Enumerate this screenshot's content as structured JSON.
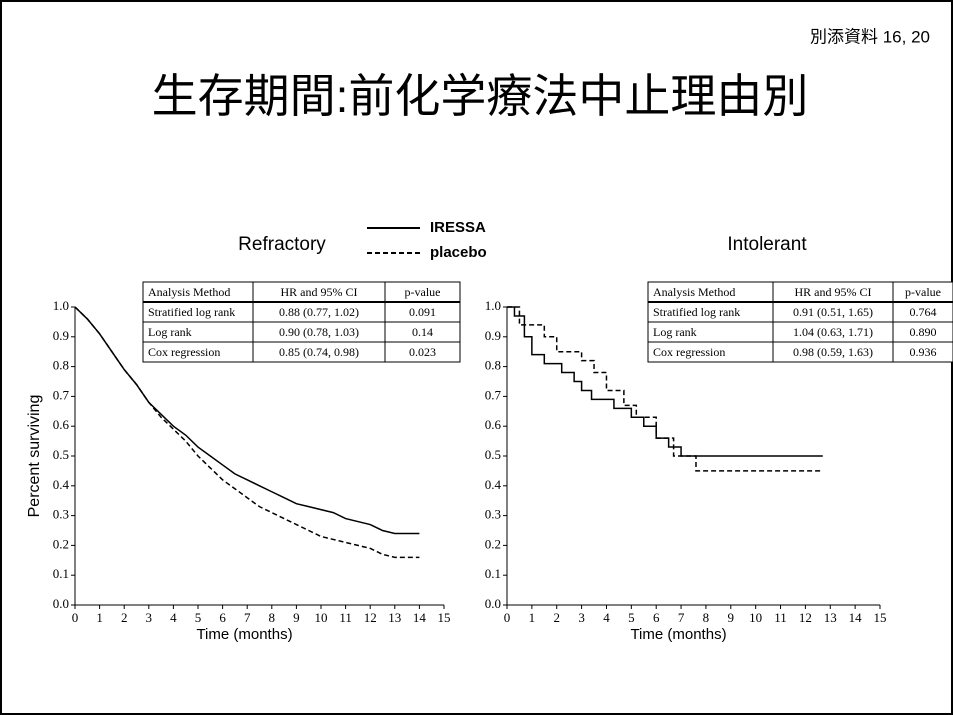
{
  "header": {
    "reference": "別添資料 16, 20",
    "title": "生存期間:前化学療法中止理由別"
  },
  "chart_data": [
    {
      "type": "line",
      "title": "Refractory",
      "x_label": "Time (months)",
      "y_label": "Percent surviving",
      "steps": false,
      "xlim": [
        0,
        15
      ],
      "ylim": [
        0,
        1
      ],
      "xticks": [
        0,
        1,
        2,
        3,
        4,
        5,
        6,
        7,
        8,
        9,
        10,
        11,
        12,
        13,
        14,
        15
      ],
      "yticks": [
        {
          "value": 0,
          "label": "0.0"
        },
        {
          "value": 0.1,
          "label": "0.1"
        },
        {
          "value": 0.2,
          "label": "0.2"
        },
        {
          "value": 0.3,
          "label": "0.3"
        },
        {
          "value": 0.4,
          "label": "0.4"
        },
        {
          "value": 0.5,
          "label": "0.5"
        },
        {
          "value": 0.6,
          "label": "0.6"
        },
        {
          "value": 0.7,
          "label": "0.7"
        },
        {
          "value": 0.8,
          "label": "0.8"
        },
        {
          "value": 0.9,
          "label": "0.9"
        },
        {
          "value": 1,
          "label": "1.0"
        }
      ],
      "series": [
        {
          "name": "IRESSA",
          "color": "#000000",
          "dashed": false,
          "x": [
            0,
            0.5,
            1,
            1.5,
            2,
            2.5,
            3,
            3.5,
            4,
            4.5,
            5,
            5.5,
            6,
            6.5,
            7,
            7.5,
            8,
            8.5,
            9,
            9.5,
            10,
            10.5,
            11,
            11.5,
            12,
            12.5,
            13,
            13.5,
            14
          ],
          "values": [
            1.0,
            0.96,
            0.91,
            0.85,
            0.79,
            0.74,
            0.68,
            0.64,
            0.6,
            0.57,
            0.53,
            0.5,
            0.47,
            0.44,
            0.42,
            0.4,
            0.38,
            0.36,
            0.34,
            0.33,
            0.32,
            0.31,
            0.29,
            0.28,
            0.27,
            0.25,
            0.24,
            0.24,
            0.24
          ]
        },
        {
          "name": "placebo",
          "color": "#000000",
          "dashed": true,
          "x": [
            0,
            0.5,
            1,
            1.5,
            2,
            2.5,
            3,
            3.5,
            4,
            4.5,
            5,
            5.5,
            6,
            6.5,
            7,
            7.5,
            8,
            8.5,
            9,
            9.5,
            10,
            10.5,
            11,
            11.5,
            12,
            12.5,
            13,
            13.5,
            14
          ],
          "values": [
            1.0,
            0.96,
            0.91,
            0.85,
            0.79,
            0.74,
            0.68,
            0.63,
            0.59,
            0.55,
            0.5,
            0.46,
            0.42,
            0.39,
            0.36,
            0.33,
            0.31,
            0.29,
            0.27,
            0.25,
            0.23,
            0.22,
            0.21,
            0.2,
            0.19,
            0.17,
            0.16,
            0.16,
            0.16
          ]
        }
      ]
    },
    {
      "type": "line",
      "title": "Intolerant",
      "x_label": "Time (months)",
      "steps": true,
      "xlim": [
        0,
        15
      ],
      "ylim": [
        0,
        1
      ],
      "xticks": [
        0,
        1,
        2,
        3,
        4,
        5,
        6,
        7,
        8,
        9,
        10,
        11,
        12,
        13,
        14,
        15
      ],
      "yticks": [
        {
          "value": 0,
          "label": "0.0"
        },
        {
          "value": 0.1,
          "label": "0.1"
        },
        {
          "value": 0.2,
          "label": "0.2"
        },
        {
          "value": 0.3,
          "label": "0.3"
        },
        {
          "value": 0.4,
          "label": "0.4"
        },
        {
          "value": 0.5,
          "label": "0.5"
        },
        {
          "value": 0.6,
          "label": "0.6"
        },
        {
          "value": 0.7,
          "label": "0.7"
        },
        {
          "value": 0.8,
          "label": "0.8"
        },
        {
          "value": 0.9,
          "label": "0.9"
        },
        {
          "value": 1,
          "label": "1.0"
        }
      ],
      "series": [
        {
          "name": "IRESSA",
          "color": "#000000",
          "dashed": false,
          "x": [
            0,
            0.3,
            0.7,
            1.0,
            1.5,
            2.2,
            2.7,
            3.0,
            3.4,
            4.3,
            5.0,
            5.5,
            6.0,
            6.5,
            7.0,
            12.7
          ],
          "values": [
            1.0,
            0.97,
            0.9,
            0.84,
            0.81,
            0.78,
            0.75,
            0.72,
            0.69,
            0.66,
            0.63,
            0.6,
            0.56,
            0.53,
            0.5,
            0.5
          ]
        },
        {
          "name": "placebo",
          "color": "#000000",
          "dashed": true,
          "x": [
            0,
            0.5,
            1.5,
            2.0,
            3.0,
            3.5,
            4.0,
            4.7,
            5.2,
            6.0,
            6.7,
            7.6,
            12.7
          ],
          "values": [
            1.0,
            0.94,
            0.9,
            0.85,
            0.82,
            0.78,
            0.72,
            0.67,
            0.63,
            0.56,
            0.5,
            0.45,
            0.45
          ]
        }
      ]
    }
  ],
  "tables": [
    {
      "header": [
        "Analysis Method",
        "HR and 95% CI",
        "p-value"
      ],
      "rows": [
        [
          "Stratified log rank",
          "0.88 (0.77, 1.02)",
          "0.091"
        ],
        [
          "Log rank",
          "0.90 (0.78, 1.03)",
          "0.14"
        ],
        [
          "Cox regression",
          "0.85 (0.74, 0.98)",
          "0.023"
        ]
      ]
    },
    {
      "header": [
        "Analysis Method",
        "HR and 95% CI",
        "p-value"
      ],
      "rows": [
        [
          "Stratified log rank",
          "0.91 (0.51, 1.65)",
          "0.764"
        ],
        [
          "Log rank",
          "1.04 (0.63, 1.71)",
          "0.890"
        ],
        [
          "Cox regression",
          "0.98 (0.59, 1.63)",
          "0.936"
        ]
      ]
    }
  ]
}
